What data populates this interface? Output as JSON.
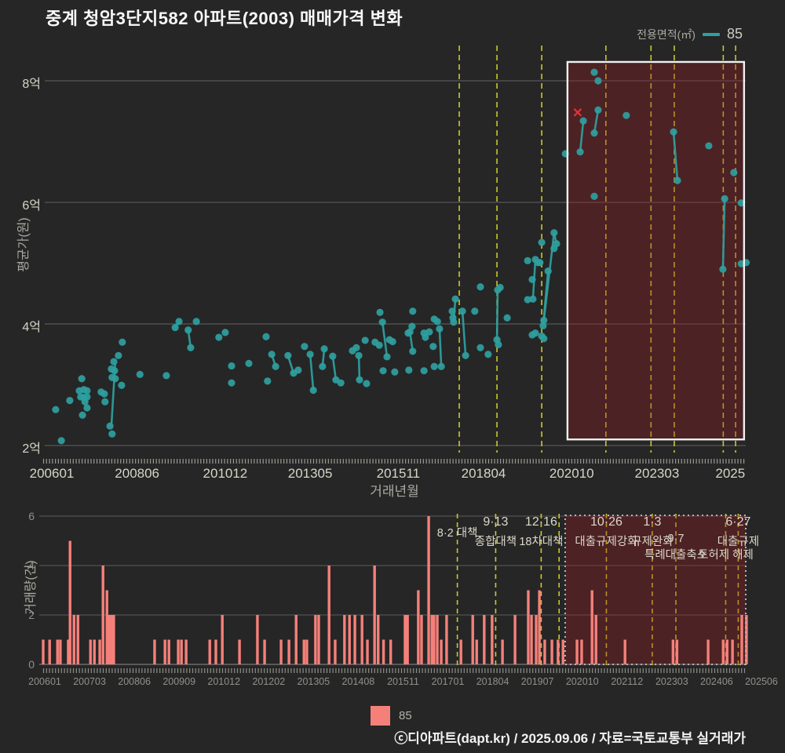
{
  "title": "중계 청암3단지582 아파트(2003) 매매가격 변화",
  "legend_top": {
    "label": "전용면적(㎡)",
    "value": "85"
  },
  "legend_bottom": {
    "value": "85"
  },
  "footer": "ⓒ디아파트(dapt.kr) / 2025.09.06 / 자료=국토교통부 실거래가",
  "colors": {
    "background": "#262626",
    "series_teal": "#2f9f9f",
    "bar_salmon": "#f5807a",
    "event_line_yellow": "#c9c92b",
    "grid": "#636363",
    "highlight_fill": "rgba(155,28,34,0.33)",
    "highlight_border_price": "#f0f0f0",
    "highlight_border_volume": "#b5b5b5",
    "outlier_red": "#e03434"
  },
  "chart_data": [
    {
      "type": "scatter",
      "name": "price-history",
      "title": "매매가격 변화",
      "ylabel": "평균가(원)",
      "xlabel": "거래년월",
      "series_label": "85",
      "grid": true,
      "xlim": [
        2005.75,
        2025.75
      ],
      "ylim": [
        1.7,
        8.6
      ],
      "y_ticks": [
        {
          "label": "2억",
          "value": 2
        },
        {
          "label": "4억",
          "value": 4
        },
        {
          "label": "6억",
          "value": 6
        },
        {
          "label": "8억",
          "value": 8
        }
      ],
      "x_ticks": [
        {
          "label": "200601",
          "year": 2006.0
        },
        {
          "label": "200806",
          "year": 2008.42
        },
        {
          "label": "201012",
          "year": 2010.92
        },
        {
          "label": "201305",
          "year": 2013.33
        },
        {
          "label": "201511",
          "year": 2015.83
        },
        {
          "label": "201804",
          "year": 2018.25
        },
        {
          "label": "202010",
          "year": 2020.75
        },
        {
          "label": "202303",
          "year": 2023.17
        },
        {
          "label": "2025",
          "year": 2025.25
        }
      ],
      "points": [
        [
          2006.11,
          2.59
        ],
        [
          2006.27,
          2.08
        ],
        [
          2006.51,
          2.74
        ],
        [
          2006.78,
          2.9
        ],
        [
          2006.82,
          2.8
        ],
        [
          2006.85,
          3.1
        ],
        [
          2006.87,
          2.5
        ],
        [
          2006.91,
          2.92
        ],
        [
          2006.91,
          2.79
        ],
        [
          2006.94,
          2.72
        ],
        [
          2007.0,
          2.9
        ],
        [
          2007.0,
          2.8
        ],
        [
          2007.0,
          2.62
        ],
        [
          2007.4,
          2.88
        ],
        [
          2007.49,
          2.85
        ],
        [
          2007.51,
          2.72
        ],
        [
          2007.65,
          2.32
        ],
        [
          2007.69,
          3.26
        ],
        [
          2007.71,
          2.19
        ],
        [
          2007.71,
          3.12
        ],
        [
          2007.76,
          3.38
        ],
        [
          2007.78,
          3.23
        ],
        [
          2007.8,
          3.1
        ],
        [
          2007.89,
          3.48
        ],
        [
          2007.98,
          2.99
        ],
        [
          2008.0,
          3.7
        ],
        [
          2008.5,
          3.17
        ],
        [
          2009.25,
          3.15
        ],
        [
          2009.5,
          3.94
        ],
        [
          2009.61,
          4.04
        ],
        [
          2009.87,
          3.9
        ],
        [
          2009.94,
          3.61
        ],
        [
          2010.1,
          4.04
        ],
        [
          2010.74,
          3.78
        ],
        [
          2010.92,
          3.86
        ],
        [
          2011.1,
          3.31
        ],
        [
          2011.59,
          3.35
        ],
        [
          2011.1,
          3.03
        ],
        [
          2012.08,
          3.79
        ],
        [
          2012.12,
          3.06
        ],
        [
          2012.24,
          3.5
        ],
        [
          2012.35,
          3.3
        ],
        [
          2012.7,
          3.48
        ],
        [
          2012.86,
          3.19
        ],
        [
          2012.99,
          3.24
        ],
        [
          2013.17,
          3.63
        ],
        [
          2013.33,
          3.5
        ],
        [
          2013.42,
          2.91
        ],
        [
          2013.68,
          3.3
        ],
        [
          2013.73,
          3.59
        ],
        [
          2013.97,
          3.47
        ],
        [
          2014.06,
          3.08
        ],
        [
          2014.2,
          3.03
        ],
        [
          2014.53,
          3.56
        ],
        [
          2014.64,
          3.61
        ],
        [
          2014.71,
          3.48
        ],
        [
          2014.73,
          3.08
        ],
        [
          2014.89,
          3.73
        ],
        [
          2014.93,
          3.02
        ],
        [
          2015.17,
          3.7
        ],
        [
          2015.29,
          3.65
        ],
        [
          2015.31,
          4.19
        ],
        [
          2015.38,
          4.03
        ],
        [
          2015.51,
          3.46
        ],
        [
          2015.58,
          3.74
        ],
        [
          2015.4,
          3.23
        ],
        [
          2015.67,
          3.71
        ],
        [
          2015.73,
          3.21
        ],
        [
          2016.11,
          3.85
        ],
        [
          2016.22,
          3.96
        ],
        [
          2016.24,
          4.21
        ],
        [
          2016.13,
          3.24
        ],
        [
          2016.16,
          3.87
        ],
        [
          2016.24,
          3.55
        ],
        [
          2016.56,
          3.85
        ],
        [
          2016.6,
          3.78
        ],
        [
          2016.71,
          3.87
        ],
        [
          2016.85,
          4.08
        ],
        [
          2016.94,
          4.04
        ],
        [
          2016.82,
          3.63
        ],
        [
          2017.0,
          3.92
        ],
        [
          2017.05,
          3.3
        ],
        [
          2016.85,
          3.3
        ],
        [
          2016.56,
          3.23
        ],
        [
          2017.36,
          4.21
        ],
        [
          2017.38,
          4.1
        ],
        [
          2017.45,
          4.41
        ],
        [
          2017.4,
          4.03
        ],
        [
          2017.65,
          4.21
        ],
        [
          2017.74,
          3.48
        ],
        [
          2018.0,
          4.21
        ],
        [
          2018.16,
          4.61
        ],
        [
          2018.16,
          3.61
        ],
        [
          2018.38,
          3.5
        ],
        [
          2018.65,
          4.56
        ],
        [
          2018.63,
          3.74
        ],
        [
          2018.72,
          4.6
        ],
        [
          2018.67,
          3.66
        ],
        [
          2018.92,
          4.1
        ],
        [
          2019.5,
          5.04
        ],
        [
          2019.72,
          5.06
        ],
        [
          2019.79,
          5.01
        ],
        [
          2019.85,
          5.01
        ],
        [
          2019.63,
          4.73
        ],
        [
          2019.5,
          4.4
        ],
        [
          2019.65,
          4.41
        ],
        [
          2019.9,
          5.34
        ],
        [
          2020.25,
          5.5
        ],
        [
          2020.32,
          5.32
        ],
        [
          2020.25,
          5.24
        ],
        [
          2020.08,
          4.87
        ],
        [
          2019.94,
          3.97
        ],
        [
          2019.96,
          4.06
        ],
        [
          2019.72,
          3.85
        ],
        [
          2019.63,
          3.82
        ],
        [
          2019.9,
          3.8
        ],
        [
          2019.96,
          3.76
        ],
        [
          2020.57,
          6.8
        ],
        [
          2021.39,
          8.14
        ],
        [
          2021.5,
          8.0
        ],
        [
          2020.99,
          6.83
        ],
        [
          2021.08,
          7.34
        ],
        [
          2021.39,
          7.14
        ],
        [
          2021.5,
          7.52
        ],
        [
          2022.3,
          7.43
        ],
        [
          2021.39,
          6.1
        ],
        [
          2023.64,
          7.16
        ],
        [
          2023.75,
          6.36
        ],
        [
          2024.64,
          6.93
        ],
        [
          2025.35,
          6.49
        ],
        [
          2025.56,
          5.99
        ],
        [
          2025.04,
          4.9
        ],
        [
          2025.09,
          6.06
        ],
        [
          2025.56,
          4.99
        ],
        [
          2025.7,
          5.01
        ]
      ],
      "segments": [
        [
          2007.8,
          3.36,
          2007.69,
          2.32
        ],
        [
          2009.61,
          4.04,
          2009.5,
          3.94
        ],
        [
          2009.87,
          3.9,
          2009.94,
          3.61
        ],
        [
          2012.24,
          3.5,
          2012.35,
          3.3
        ],
        [
          2012.7,
          3.48,
          2012.86,
          3.19
        ],
        [
          2013.33,
          3.5,
          2013.42,
          2.91
        ],
        [
          2013.73,
          3.59,
          2013.68,
          3.3
        ],
        [
          2013.97,
          3.47,
          2014.06,
          3.08
        ],
        [
          2014.71,
          3.48,
          2014.73,
          3.08
        ],
        [
          2015.38,
          4.03,
          2015.51,
          3.46
        ],
        [
          2016.16,
          3.87,
          2016.24,
          3.55
        ],
        [
          2017.0,
          3.92,
          2017.05,
          3.3
        ],
        [
          2017.45,
          4.41,
          2017.4,
          4.03
        ],
        [
          2017.65,
          4.21,
          2017.74,
          3.48
        ],
        [
          2018.65,
          4.56,
          2018.63,
          3.74
        ],
        [
          2019.72,
          5.06,
          2019.65,
          4.41
        ],
        [
          2019.96,
          4.06,
          2020.25,
          5.5
        ],
        [
          2020.25,
          5.5,
          2020.32,
          5.32
        ],
        [
          2020.08,
          4.87,
          2019.94,
          3.97
        ],
        [
          2020.99,
          6.83,
          2021.08,
          7.34
        ],
        [
          2021.39,
          7.14,
          2021.5,
          7.52
        ],
        [
          2023.64,
          7.16,
          2023.75,
          6.36
        ],
        [
          2025.09,
          6.06,
          2025.04,
          4.9
        ]
      ],
      "outlier_marker": {
        "year": 2020.92,
        "price": 7.48
      },
      "highlight_box": {
        "x1_year": 2020.63,
        "x2_year": 2025.64,
        "price_top": 8.31,
        "price_bottom": 2.1
      }
    },
    {
      "type": "bar",
      "name": "transaction-volume",
      "ylabel": "거래량(건)",
      "series_label": "85",
      "ylim": [
        0,
        6
      ],
      "y_ticks": [
        {
          "label": "0",
          "value": 0
        },
        {
          "label": "2",
          "value": 2
        },
        {
          "label": "4",
          "value": 4
        },
        {
          "label": "6",
          "value": 6
        }
      ],
      "x_tick_labels": [
        "200601",
        "200703",
        "200806",
        "200909",
        "201012",
        "201202",
        "201305",
        "201408",
        "201511",
        "201701",
        "201804",
        "201907",
        "202010",
        "202112",
        "202303",
        "202406",
        "202506"
      ],
      "bars": [
        [
          2006.0,
          1
        ],
        [
          2006.18,
          1
        ],
        [
          2006.4,
          1
        ],
        [
          2006.48,
          1
        ],
        [
          2006.7,
          1
        ],
        [
          2006.75,
          5
        ],
        [
          2006.86,
          2
        ],
        [
          2006.97,
          2
        ],
        [
          2007.32,
          1
        ],
        [
          2007.43,
          1
        ],
        [
          2007.58,
          1
        ],
        [
          2007.67,
          4
        ],
        [
          2007.78,
          3
        ],
        [
          2007.84,
          2
        ],
        [
          2007.91,
          2
        ],
        [
          2007.97,
          2
        ],
        [
          2009.11,
          1
        ],
        [
          2009.4,
          1
        ],
        [
          2009.51,
          1
        ],
        [
          2009.77,
          1
        ],
        [
          2009.86,
          1
        ],
        [
          2009.99,
          1
        ],
        [
          2010.65,
          1
        ],
        [
          2010.82,
          1
        ],
        [
          2011.0,
          2
        ],
        [
          2011.48,
          1
        ],
        [
          2011.98,
          2
        ],
        [
          2012.18,
          1
        ],
        [
          2012.64,
          1
        ],
        [
          2012.86,
          1
        ],
        [
          2013.06,
          2
        ],
        [
          2013.28,
          1
        ],
        [
          2013.36,
          1
        ],
        [
          2013.6,
          2
        ],
        [
          2013.69,
          2
        ],
        [
          2013.98,
          4
        ],
        [
          2014.15,
          1
        ],
        [
          2014.41,
          2
        ],
        [
          2014.55,
          2
        ],
        [
          2014.7,
          2
        ],
        [
          2014.9,
          2
        ],
        [
          2015.05,
          1
        ],
        [
          2015.25,
          4
        ],
        [
          2015.35,
          2
        ],
        [
          2015.5,
          1
        ],
        [
          2015.7,
          1
        ],
        [
          2016.1,
          2
        ],
        [
          2016.17,
          2
        ],
        [
          2016.47,
          3
        ],
        [
          2016.56,
          2
        ],
        [
          2016.76,
          6
        ],
        [
          2016.85,
          2
        ],
        [
          2016.91,
          2
        ],
        [
          2017.0,
          2
        ],
        [
          2017.11,
          1
        ],
        [
          2017.26,
          2
        ],
        [
          2017.66,
          1
        ],
        [
          2017.99,
          2
        ],
        [
          2018.1,
          1
        ],
        [
          2018.31,
          2
        ],
        [
          2018.53,
          2
        ],
        [
          2018.82,
          1
        ],
        [
          2019.17,
          2
        ],
        [
          2019.54,
          3
        ],
        [
          2019.63,
          2
        ],
        [
          2019.76,
          2
        ],
        [
          2019.85,
          3
        ],
        [
          2020.0,
          1
        ],
        [
          2020.2,
          1
        ],
        [
          2020.37,
          1
        ],
        [
          2020.51,
          1
        ],
        [
          2020.9,
          1
        ],
        [
          2021.03,
          1
        ],
        [
          2021.32,
          3
        ],
        [
          2021.43,
          2
        ],
        [
          2022.24,
          1
        ],
        [
          2023.58,
          1
        ],
        [
          2023.69,
          1
        ],
        [
          2024.56,
          1
        ],
        [
          2024.98,
          1
        ],
        [
          2025.09,
          1
        ],
        [
          2025.24,
          1
        ],
        [
          2025.5,
          2
        ],
        [
          2025.63,
          2
        ]
      ],
      "highlight_box": {
        "x1_year": 2020.57,
        "x2_year": 2025.61,
        "count_top": 6,
        "count_bottom": 0
      }
    }
  ],
  "events": [
    {
      "year": 2017.56,
      "top_chart": true,
      "labels": [
        {
          "text": "8·2 대책",
          "row": 0
        }
      ]
    },
    {
      "year": 2018.63,
      "top_chart": true,
      "labels": [
        {
          "text": "9·13",
          "row": 1
        },
        {
          "text": "종합대책",
          "row": 2
        }
      ]
    },
    {
      "year": 2019.9,
      "top_chart": true,
      "labels": [
        {
          "text": "12·16",
          "row": 1
        },
        {
          "text": "18차대책",
          "row": 2
        }
      ]
    },
    {
      "year": 2020.4,
      "top_chart": false,
      "labels": []
    },
    {
      "year": 2021.72,
      "top_chart": true,
      "labels": [
        {
          "text": "10·26",
          "row": 1
        },
        {
          "text": "대출규제강화",
          "row": 2
        }
      ]
    },
    {
      "year": 2023.0,
      "top_chart": true,
      "labels": [
        {
          "text": "1·3",
          "row": 1
        },
        {
          "text": "규제완화",
          "row": 2
        }
      ]
    },
    {
      "year": 2023.66,
      "top_chart": true,
      "labels": [
        {
          "text": "9·7",
          "row": 2
        },
        {
          "text": "특례대출축소",
          "row": 3
        }
      ]
    },
    {
      "year": 2025.05,
      "top_chart": true,
      "labels": [
        {
          "text": "토허제 해제",
          "row": 3
        }
      ]
    },
    {
      "year": 2025.4,
      "top_chart": true,
      "labels": [
        {
          "text": "6·27",
          "row": 1
        },
        {
          "text": "대출규제",
          "row": 2
        }
      ]
    }
  ]
}
